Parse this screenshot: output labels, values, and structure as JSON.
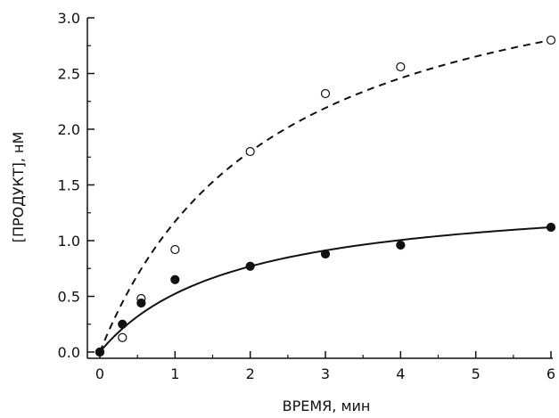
{
  "chart_data": {
    "type": "scatter",
    "title": "",
    "xlabel": "ВРЕМЯ, мин",
    "ylabel": "[ПРОДУКТ], нМ",
    "xlim": [
      0,
      6
    ],
    "ylim": [
      0,
      3.0
    ],
    "x_ticks": [
      "0",
      "1",
      "2",
      "3",
      "4",
      "5",
      "6"
    ],
    "x_tick_values": [
      0,
      1,
      2,
      3,
      4,
      5,
      6
    ],
    "y_ticks": [
      "0.0",
      "0.5",
      "1.0",
      "1.5",
      "2.0",
      "2.5",
      "3.0"
    ],
    "y_tick_values": [
      0,
      0.5,
      1.0,
      1.5,
      2.0,
      2.5,
      3.0
    ],
    "grid": false,
    "series": [
      {
        "marker": "open-circle",
        "fit_line": "dashed",
        "color": "#111111",
        "x": [
          0,
          0.3,
          0.55,
          1,
          2,
          3,
          4,
          6
        ],
        "y": [
          0.0,
          0.13,
          0.48,
          0.92,
          1.8,
          2.32,
          2.56,
          2.8
        ]
      },
      {
        "marker": "filled-circle",
        "fit_line": "solid",
        "color": "#111111",
        "x": [
          0,
          0.3,
          0.55,
          1,
          2,
          3,
          4,
          6
        ],
        "y": [
          0.0,
          0.25,
          0.44,
          0.65,
          0.77,
          0.88,
          0.96,
          1.12
        ]
      }
    ]
  }
}
